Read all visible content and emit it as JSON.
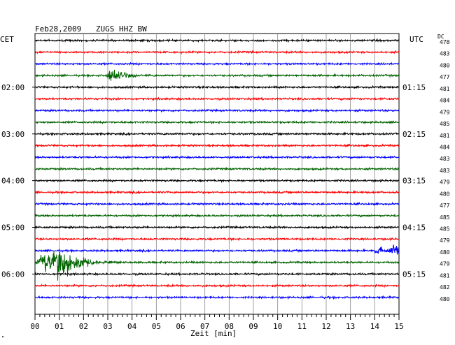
{
  "header": {
    "date": "Feb28,2009",
    "station": "ZUGS HHZ BW",
    "left_zone": "CET",
    "right_zone": "UTC",
    "dc_label": "DC"
  },
  "chart_data": {
    "type": "line",
    "title": "Feb28,2009   ZUGS HHZ BW",
    "xlabel": "Zeit [min]",
    "xlim": [
      0,
      15
    ],
    "x_ticks": [
      "00",
      "01",
      "02",
      "03",
      "04",
      "05",
      "06",
      "07",
      "08",
      "09",
      "10",
      "11",
      "12",
      "13",
      "14",
      "15"
    ],
    "trace_interval_min": 15,
    "trace_colors": [
      "#000000",
      "#ff0000",
      "#0000ff",
      "#006400"
    ],
    "grid": true,
    "left_time_labels": [
      {
        "trace": 4,
        "text": "02:00"
      },
      {
        "trace": 8,
        "text": "03:00"
      },
      {
        "trace": 12,
        "text": "04:00"
      },
      {
        "trace": 16,
        "text": "05:00"
      },
      {
        "trace": 20,
        "text": "06:00"
      }
    ],
    "right_time_labels": [
      {
        "trace": 4,
        "text": "01:15"
      },
      {
        "trace": 8,
        "text": "02:15"
      },
      {
        "trace": 12,
        "text": "03:15"
      },
      {
        "trace": 16,
        "text": "04:15"
      },
      {
        "trace": 20,
        "text": "05:15"
      }
    ],
    "dc_offsets": [
      "478",
      "483",
      "480",
      "477",
      "481",
      "484",
      "479",
      "485",
      "481",
      "484",
      "483",
      "483",
      "479",
      "480",
      "477",
      "485",
      "485",
      "479",
      "480",
      "479",
      "481",
      "482",
      "480"
    ],
    "events": [
      {
        "trace": 3,
        "start_min": 2.9,
        "end_min": 4.8,
        "amplitude": "medium"
      },
      {
        "trace": 18,
        "start_min": 13.9,
        "end_min": 15.0,
        "amplitude": "small"
      },
      {
        "trace": 19,
        "start_min": 0.0,
        "end_min": 3.5,
        "amplitude": "large"
      }
    ]
  },
  "footer_mark": "\""
}
